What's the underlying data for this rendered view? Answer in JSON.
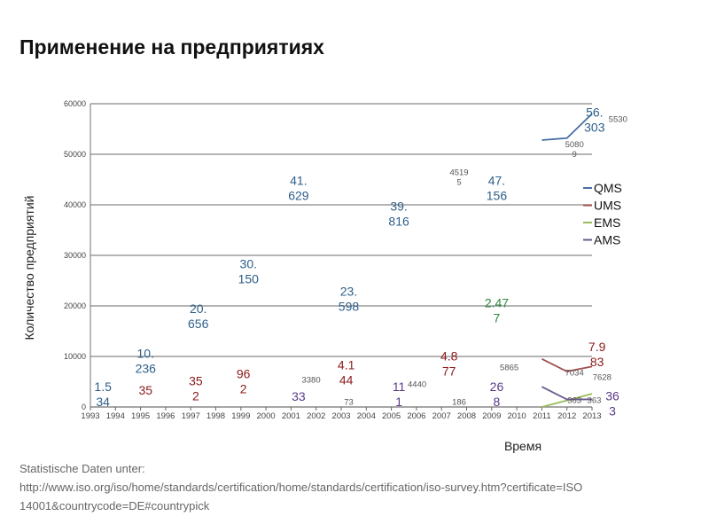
{
  "title": "Применение на предприятиях",
  "footer": {
    "line1": "Statistische Daten unter:",
    "line2": "http://www.iso.org/iso/home/standards/certification/home/standards/certification/iso-survey.htm?certificate=ISO",
    "line3": "14001&countrycode=DE#countrypick"
  },
  "chart_data": {
    "type": "line",
    "title": "",
    "xlabel": "Время",
    "ylabel": "Количество предприятий",
    "xlim": [
      1993,
      2013
    ],
    "ylim": [
      0,
      60000
    ],
    "yticks": [
      0,
      10000,
      20000,
      30000,
      40000,
      50000,
      60000
    ],
    "xticks": [
      "1993",
      "1994",
      "1995",
      "1996",
      "1997",
      "1998",
      "1999",
      "2000",
      "2001",
      "2002",
      "2003",
      "2004",
      "2005",
      "2006",
      "2007",
      "2008",
      "2009",
      "2010",
      "2011",
      "2012",
      "2013"
    ],
    "grid": true,
    "legend_position": "right",
    "series": [
      {
        "name": "QMS",
        "color": "#4a6fa5",
        "x": [
          2011,
          2012,
          2013
        ],
        "values": [
          52800,
          53200,
          58000
        ]
      },
      {
        "name": "UMS",
        "color": "#a05050",
        "x": [
          2011,
          2012,
          2013
        ],
        "values": [
          9500,
          7034,
          8000
        ]
      },
      {
        "name": "EMS",
        "color": "#9bbb59",
        "x": [
          2011,
          2012,
          2013
        ],
        "values": [
          0,
          1300,
          2600
        ]
      },
      {
        "name": "AMS",
        "color": "#6a5a8a",
        "x": [
          2011,
          2012,
          2013
        ],
        "values": [
          4000,
          1500,
          1500
        ]
      }
    ],
    "annotations": [
      {
        "text": [
          "1.5",
          "34"
        ],
        "x": 1993.5,
        "y": 1500,
        "color": "#2e5f8a",
        "size": "big"
      },
      {
        "text": [
          "10.",
          "236"
        ],
        "x": 1995.2,
        "y": 9100,
        "color": "#2e5f8a",
        "size": "big"
      },
      {
        "text": [
          "20.",
          "656"
        ],
        "x": 1997.3,
        "y": 18000,
        "color": "#2e5f8a",
        "size": "big"
      },
      {
        "text": [
          "30.",
          "150"
        ],
        "x": 1999.3,
        "y": 26800,
        "color": "#2e5f8a",
        "size": "big"
      },
      {
        "text": [
          "41.",
          "629"
        ],
        "x": 2001.3,
        "y": 43300,
        "color": "#2e5f8a",
        "size": "big"
      },
      {
        "text": [
          "23.",
          "598"
        ],
        "x": 2003.3,
        "y": 21400,
        "color": "#2e5f8a",
        "size": "big"
      },
      {
        "text": [
          "39.",
          "816"
        ],
        "x": 2005.3,
        "y": 38200,
        "color": "#2e5f8a",
        "size": "big"
      },
      {
        "text": [
          "47.",
          "156"
        ],
        "x": 2009.2,
        "y": 43300,
        "color": "#2e5f8a",
        "size": "big"
      },
      {
        "text": [
          "56.",
          "303"
        ],
        "x": 2013.1,
        "y": 56800,
        "color": "#2e5f8a",
        "size": "big"
      },
      {
        "text": [
          "35"
        ],
        "x": 1995.2,
        "y": 3300,
        "color": "#8b1a1a",
        "size": "big"
      },
      {
        "text": [
          "35",
          "2"
        ],
        "x": 1997.2,
        "y": 3700,
        "color": "#8b1a1a",
        "size": "big"
      },
      {
        "text": [
          "96",
          "2"
        ],
        "x": 1999.1,
        "y": 5100,
        "color": "#8b1a1a",
        "size": "big"
      },
      {
        "text": [
          "4.1",
          "44"
        ],
        "x": 2003.2,
        "y": 6800,
        "color": "#8b1a1a",
        "size": "big"
      },
      {
        "text": [
          "4.8",
          "77"
        ],
        "x": 2007.3,
        "y": 8600,
        "color": "#8b1a1a",
        "size": "big"
      },
      {
        "text": [
          "7.9",
          "83"
        ],
        "x": 2013.2,
        "y": 10400,
        "color": "#8b1a1a",
        "size": "big"
      },
      {
        "text": [
          "2.47",
          "7"
        ],
        "x": 2009.2,
        "y": 19100,
        "color": "#2a8a3a",
        "size": "big"
      },
      {
        "text": [
          "33"
        ],
        "x": 2001.3,
        "y": 2100,
        "color": "#5a3a8a",
        "size": "big"
      },
      {
        "text": [
          "11",
          "1"
        ],
        "x": 2005.3,
        "y": 2500,
        "color": "#5a3a8a",
        "size": "big"
      },
      {
        "text": [
          "26",
          "8"
        ],
        "x": 2009.2,
        "y": 2500,
        "color": "#5a3a8a",
        "size": "big"
      },
      {
        "text": [
          "36",
          "3"
        ],
        "x": 2013.6,
        "y": 700,
        "color": "#5a3a8a",
        "size": "big"
      },
      {
        "text": [
          "3380"
        ],
        "x": 2001.8,
        "y": 3300,
        "color": "#555",
        "size": "small"
      },
      {
        "text": [
          "73"
        ],
        "x": 2003.3,
        "y": 0,
        "color": "#555",
        "size": "small"
      },
      {
        "text": [
          "4440"
        ],
        "x": 2005.6,
        "y": 4500,
        "color": "#555",
        "size": "small"
      },
      {
        "text": [
          "4519",
          "5"
        ],
        "x": 2007.7,
        "y": 45500,
        "color": "#555",
        "size": "small"
      },
      {
        "text": [
          "186"
        ],
        "x": 2007.7,
        "y": 0,
        "color": "#555",
        "size": "small"
      },
      {
        "text": [
          "5865"
        ],
        "x": 2009.7,
        "y": 5800,
        "color": "#555",
        "size": "small"
      },
      {
        "text": [
          "5080",
          "9"
        ],
        "x": 2012.3,
        "y": 51000,
        "color": "#555",
        "size": "small"
      },
      {
        "text": [
          "5530"
        ],
        "x": 2013.4,
        "y": 57000,
        "color": "#555",
        "size": "small"
      },
      {
        "text": [
          "7034"
        ],
        "x": 2012.3,
        "y": 6800,
        "color": "#555",
        "size": "small"
      },
      {
        "text": [
          "7628"
        ],
        "x": 2013.4,
        "y": 8000,
        "color": "#555",
        "size": "small"
      },
      {
        "text": [
          "363"
        ],
        "x": 2012.3,
        "y": 300,
        "color": "#555",
        "size": "small"
      },
      {
        "text": [
          "363"
        ],
        "x": 2013.3,
        "y": 300,
        "color": "#555",
        "size": "small"
      }
    ]
  }
}
